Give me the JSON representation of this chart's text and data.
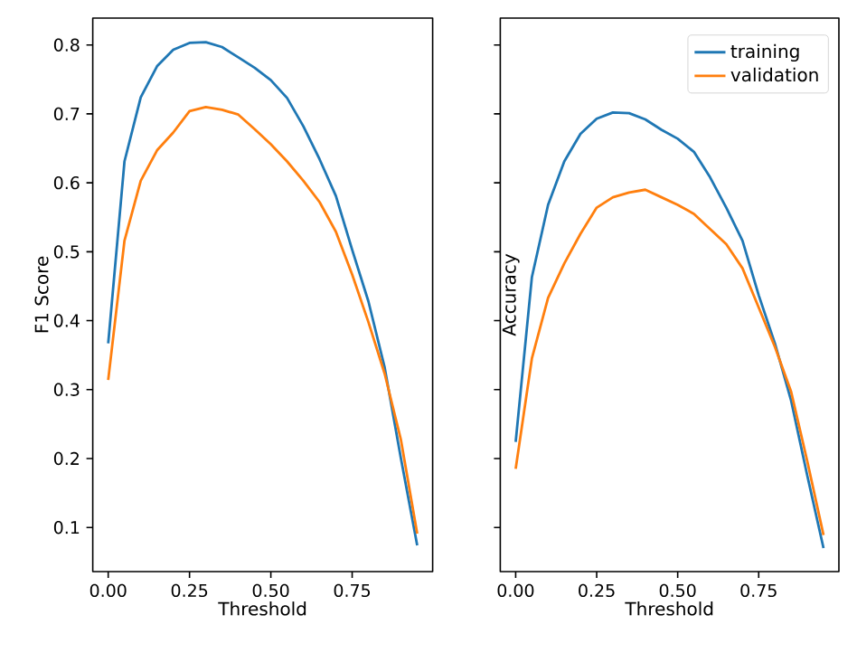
{
  "chart_data": [
    {
      "type": "line",
      "xlabel": "Threshold",
      "ylabel": "F1 Score",
      "x": [
        0,
        0.05,
        0.1,
        0.15,
        0.2,
        0.25,
        0.3,
        0.35,
        0.4,
        0.45,
        0.5,
        0.55,
        0.6,
        0.65,
        0.7,
        0.75,
        0.8,
        0.85,
        0.9,
        0.95
      ],
      "series": [
        {
          "color": "#1f77b4",
          "values": [
            0.367,
            0.631,
            0.724,
            0.769,
            0.793,
            0.803,
            0.804,
            0.797,
            0.782,
            0.767,
            0.749,
            0.723,
            0.682,
            0.634,
            0.581,
            0.503,
            0.428,
            0.332,
            0.2,
            0.074
          ]
        },
        {
          "color": "#ff7f0e",
          "values": [
            0.314,
            0.516,
            0.603,
            0.647,
            0.673,
            0.704,
            0.71,
            0.706,
            0.699,
            0.678,
            0.656,
            0.631,
            0.603,
            0.572,
            0.529,
            0.467,
            0.398,
            0.323,
            0.227,
            0.091
          ]
        }
      ],
      "xlim": [
        -0.0475,
        0.9975
      ],
      "ylim": [
        0.036,
        0.839
      ],
      "xticks": [
        {
          "value": 0,
          "label": "0.00"
        },
        {
          "value": 0.25,
          "label": "0.25"
        },
        {
          "value": 0.5,
          "label": "0.50"
        },
        {
          "value": 0.75,
          "label": "0.75"
        }
      ],
      "yticks": [
        0.1,
        0.2,
        0.3,
        0.4,
        0.5,
        0.6,
        0.7,
        0.8
      ],
      "grid": false,
      "legend": false,
      "marker": "none",
      "line_style": "solid"
    },
    {
      "type": "line",
      "xlabel": "Threshold",
      "ylabel": "Accuracy",
      "x": [
        0,
        0.05,
        0.1,
        0.15,
        0.2,
        0.25,
        0.3,
        0.35,
        0.4,
        0.45,
        0.5,
        0.55,
        0.6,
        0.65,
        0.7,
        0.75,
        0.8,
        0.85,
        0.9,
        0.95
      ],
      "series": [
        {
          "name": "training",
          "color": "#1f77b4",
          "values": [
            0.224,
            0.463,
            0.568,
            0.631,
            0.671,
            0.693,
            0.702,
            0.701,
            0.692,
            0.677,
            0.664,
            0.645,
            0.608,
            0.564,
            0.516,
            0.437,
            0.367,
            0.284,
            0.175,
            0.07
          ]
        },
        {
          "name": "validation",
          "color": "#ff7f0e",
          "values": [
            0.185,
            0.345,
            0.433,
            0.483,
            0.526,
            0.564,
            0.579,
            0.586,
            0.59,
            0.579,
            0.568,
            0.555,
            0.533,
            0.511,
            0.476,
            0.419,
            0.362,
            0.297,
            0.196,
            0.089
          ]
        }
      ],
      "xlim": [
        -0.0475,
        0.9975
      ],
      "ylim": [
        0.036,
        0.839
      ],
      "xticks": [
        {
          "value": 0,
          "label": "0.00"
        },
        {
          "value": 0.25,
          "label": "0.25"
        },
        {
          "value": 0.5,
          "label": "0.50"
        },
        {
          "value": 0.75,
          "label": "0.75"
        }
      ],
      "yticks": [
        0.1,
        0.2,
        0.3,
        0.4,
        0.5,
        0.6,
        0.7,
        0.8
      ],
      "tick_labels": "x",
      "grid": false,
      "legend": "top right",
      "marker": "none",
      "line_style": "solid"
    }
  ]
}
